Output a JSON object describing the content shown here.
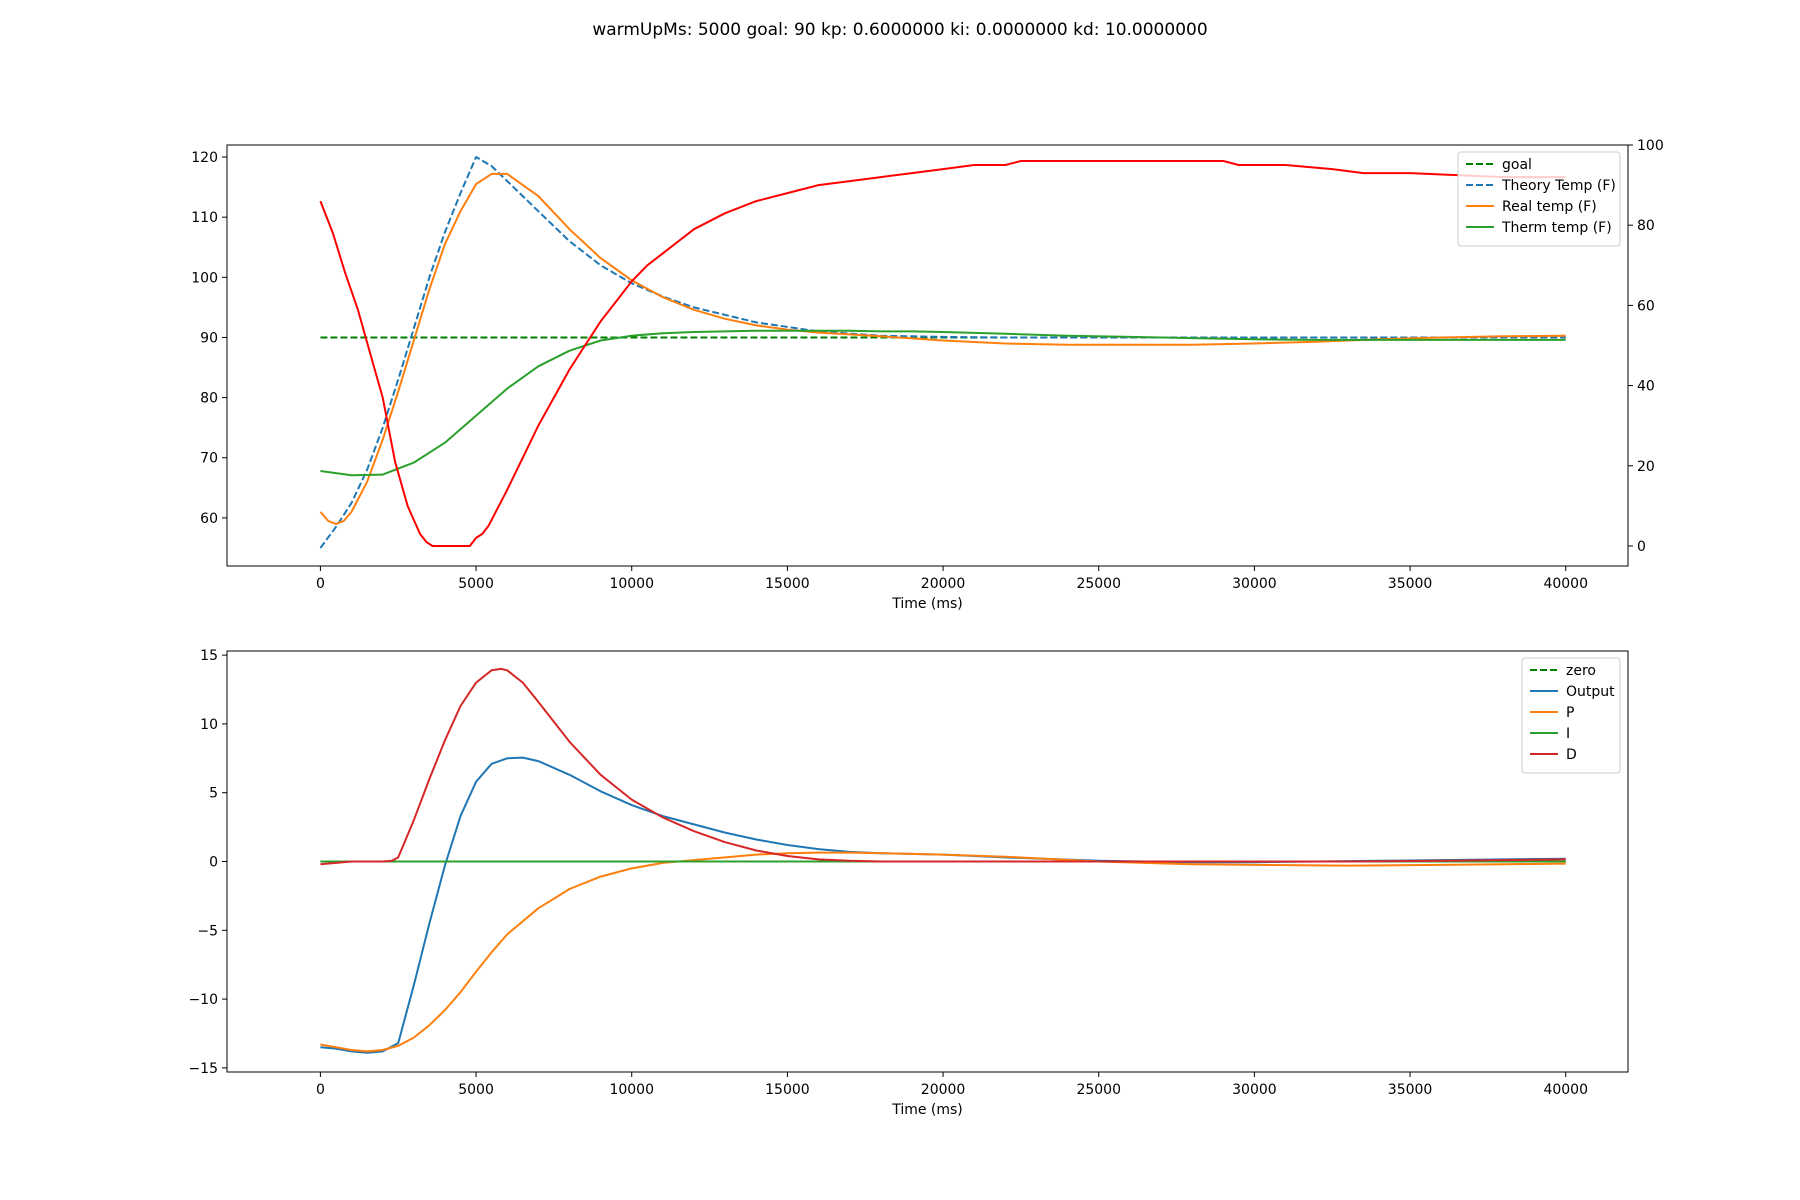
{
  "suptitle": "warmUpMs: 5000 goal: 90 kp: 0.6000000 ki: 0.0000000 kd: 10.0000000",
  "chart_data": [
    {
      "type": "line",
      "title": "",
      "xlabel": "Time (ms)",
      "ylabel": "",
      "xlim": [
        -3000,
        42000
      ],
      "ylim": [
        52,
        122
      ],
      "y2lim": [
        -5,
        100
      ],
      "xticks": [
        0,
        5000,
        10000,
        15000,
        20000,
        25000,
        30000,
        35000,
        40000
      ],
      "yticks": [
        60,
        70,
        80,
        90,
        100,
        110,
        120
      ],
      "y2ticks": [
        0,
        20,
        40,
        60,
        80,
        100
      ],
      "legend_position": "top-right",
      "grid": false,
      "series": [
        {
          "name": "goal",
          "color": "#008000",
          "dash": true,
          "axis": "left",
          "x": [
            0,
            40000
          ],
          "y": [
            90,
            90
          ]
        },
        {
          "name": "Theory Temp (F)",
          "color": "#1f77b4",
          "dash": true,
          "axis": "left",
          "x": [
            0,
            500,
            1000,
            1500,
            2000,
            2500,
            3000,
            3500,
            4000,
            4500,
            5000,
            5500,
            6000,
            7000,
            8000,
            9000,
            10000,
            11000,
            12000,
            14000,
            16000,
            18000,
            20000,
            22000,
            25000,
            28000,
            30000,
            33000,
            36000,
            38000,
            40000
          ],
          "y": [
            55,
            58.5,
            62.5,
            68,
            75,
            83,
            91.5,
            100,
            107.5,
            114,
            120,
            118.5,
            116,
            111,
            106,
            102,
            99,
            96.8,
            95,
            92.5,
            91,
            90.3,
            90.1,
            90.0,
            90.0,
            90.0,
            90.0,
            90.0,
            90.0,
            90.0,
            90.0
          ]
        },
        {
          "name": "Real temp (F)",
          "color": "#ff7f0e",
          "dash": false,
          "axis": "left",
          "x": [
            0,
            250,
            500,
            750,
            1000,
            1500,
            2000,
            2500,
            3000,
            3500,
            4000,
            4500,
            5000,
            5500,
            6000,
            7000,
            8000,
            9000,
            10000,
            11000,
            12000,
            13000,
            14000,
            15000,
            16000,
            17000,
            18000,
            20000,
            22000,
            24000,
            26000,
            28000,
            30000,
            32000,
            34000,
            36000,
            38000,
            40000
          ],
          "y": [
            61,
            59.5,
            59,
            59.5,
            61,
            66,
            73,
            81,
            89.5,
            98,
            105.5,
            111,
            115.5,
            117.2,
            117.2,
            113.5,
            108,
            103.2,
            99.5,
            96.7,
            94.6,
            93.1,
            92.0,
            91.3,
            90.8,
            90.5,
            90.2,
            89.5,
            89.0,
            88.8,
            88.8,
            88.8,
            89.0,
            89.3,
            89.7,
            90.0,
            90.2,
            90.3
          ]
        },
        {
          "name": "Therm temp (F)",
          "color": "#2ca02c",
          "dash": false,
          "axis": "left",
          "x": [
            0,
            1000,
            2000,
            3000,
            4000,
            5000,
            6000,
            7000,
            8000,
            9000,
            10000,
            11000,
            12000,
            13000,
            14000,
            15000,
            16000,
            17000,
            18000,
            19000,
            20000,
            22000,
            24000,
            26000,
            28000,
            30000,
            32000,
            34000,
            36000,
            38000,
            40000
          ],
          "y": [
            67.8,
            67.1,
            67.2,
            69.2,
            72.5,
            77,
            81.5,
            85.2,
            87.8,
            89.5,
            90.3,
            90.7,
            90.9,
            91.0,
            91.1,
            91.1,
            91.1,
            91.1,
            91.0,
            91.0,
            90.9,
            90.6,
            90.3,
            90.1,
            89.9,
            89.7,
            89.6,
            89.6,
            89.6,
            89.6,
            89.6
          ]
        },
        {
          "name": "",
          "color": "#ff0000",
          "dash": false,
          "axis": "right",
          "x": [
            0,
            400,
            800,
            1200,
            1600,
            2000,
            2400,
            2800,
            3200,
            3400,
            3600,
            3800,
            4000,
            4400,
            4800,
            5000,
            5200,
            5400,
            5600,
            5800,
            6000,
            6500,
            7000,
            7500,
            8000,
            8500,
            9000,
            9500,
            10000,
            10500,
            11000,
            12000,
            13000,
            14000,
            15000,
            16000,
            17000,
            18000,
            19000,
            20000,
            21000,
            22000,
            22500,
            25000,
            29000,
            29500,
            31000,
            32500,
            33500,
            35000,
            38000,
            40000
          ],
          "y": [
            86,
            78,
            68,
            59,
            48,
            37,
            21,
            10,
            3,
            1,
            0,
            0,
            0,
            0,
            0,
            2,
            3,
            5,
            8,
            11,
            14,
            22,
            30,
            37,
            44,
            50,
            56,
            61,
            66,
            70,
            73,
            79,
            83,
            86,
            88,
            90,
            91,
            92,
            93,
            94,
            95,
            95,
            96,
            96,
            96,
            95,
            95,
            94,
            93,
            93,
            92,
            92
          ]
        }
      ]
    },
    {
      "type": "line",
      "title": "",
      "xlabel": "Time (ms)",
      "ylabel": "",
      "xlim": [
        -3000,
        42000
      ],
      "ylim": [
        -15.3,
        15.3
      ],
      "xticks": [
        0,
        5000,
        10000,
        15000,
        20000,
        25000,
        30000,
        35000,
        40000
      ],
      "yticks": [
        -15,
        -10,
        -5,
        0,
        5,
        10,
        15
      ],
      "ytick_labels": [
        "−15",
        "−10",
        "−5",
        "0",
        "5",
        "10",
        "15"
      ],
      "legend_position": "top-right",
      "grid": false,
      "series": [
        {
          "name": "zero",
          "color": "#008000",
          "dash": true,
          "x": [
            0,
            40000
          ],
          "y": [
            0,
            0
          ]
        },
        {
          "name": "Output",
          "color": "#1f77b4",
          "dash": false,
          "x": [
            0,
            500,
            1000,
            1500,
            2000,
            2500,
            3000,
            3500,
            4000,
            4500,
            5000,
            5500,
            6000,
            6500,
            7000,
            8000,
            9000,
            10000,
            11000,
            12000,
            13000,
            14000,
            15000,
            16000,
            17000,
            18000,
            20000,
            22000,
            25000,
            28000,
            30000,
            32000,
            34000,
            36000,
            38000,
            40000
          ],
          "y": [
            -13.5,
            -13.6,
            -13.8,
            -13.9,
            -13.8,
            -13.2,
            -9,
            -4.5,
            -0.3,
            3.3,
            5.8,
            7.1,
            7.5,
            7.55,
            7.3,
            6.3,
            5.1,
            4.1,
            3.3,
            2.7,
            2.1,
            1.6,
            1.2,
            0.9,
            0.7,
            0.6,
            0.5,
            0.3,
            0.05,
            -0.05,
            -0.05,
            0.0,
            0.05,
            0.1,
            0.15,
            0.2
          ]
        },
        {
          "name": "P",
          "color": "#ff7f0e",
          "dash": false,
          "x": [
            0,
            500,
            1000,
            1500,
            2000,
            2500,
            3000,
            3500,
            4000,
            4500,
            5000,
            5500,
            6000,
            7000,
            8000,
            9000,
            10000,
            11000,
            12000,
            13000,
            14000,
            15000,
            16000,
            17000,
            18000,
            20000,
            22000,
            25000,
            28000,
            30000,
            33000,
            36000,
            38000,
            40000
          ],
          "y": [
            -13.3,
            -13.5,
            -13.7,
            -13.8,
            -13.7,
            -13.4,
            -12.8,
            -11.9,
            -10.8,
            -9.5,
            -8,
            -6.6,
            -5.3,
            -3.4,
            -2.0,
            -1.1,
            -0.5,
            -0.1,
            0.1,
            0.3,
            0.5,
            0.6,
            0.65,
            0.65,
            0.6,
            0.5,
            0.35,
            0.0,
            -0.2,
            -0.25,
            -0.3,
            -0.25,
            -0.2,
            -0.15
          ]
        },
        {
          "name": "I",
          "color": "#2ca02c",
          "dash": false,
          "x": [
            0,
            40000
          ],
          "y": [
            0,
            0
          ]
        },
        {
          "name": "D",
          "color": "#d62728",
          "dash": false,
          "x": [
            0,
            500,
            1000,
            1500,
            2000,
            2300,
            2500,
            3000,
            3500,
            4000,
            4500,
            5000,
            5500,
            5800,
            6000,
            6500,
            7000,
            8000,
            9000,
            10000,
            11000,
            12000,
            13000,
            14000,
            15000,
            16000,
            17000,
            18000,
            20000,
            25000,
            30000,
            33000,
            36000,
            38000,
            40000
          ],
          "y": [
            -0.2,
            -0.1,
            0.0,
            0.0,
            0.0,
            0.05,
            0.3,
            3,
            6,
            8.8,
            11.3,
            13.0,
            13.9,
            14.0,
            13.9,
            13.0,
            11.6,
            8.7,
            6.3,
            4.5,
            3.2,
            2.2,
            1.4,
            0.8,
            0.4,
            0.15,
            0.05,
            0.0,
            0.0,
            0.0,
            0.0,
            0.0,
            0.05,
            0.1,
            0.15
          ]
        }
      ]
    }
  ]
}
